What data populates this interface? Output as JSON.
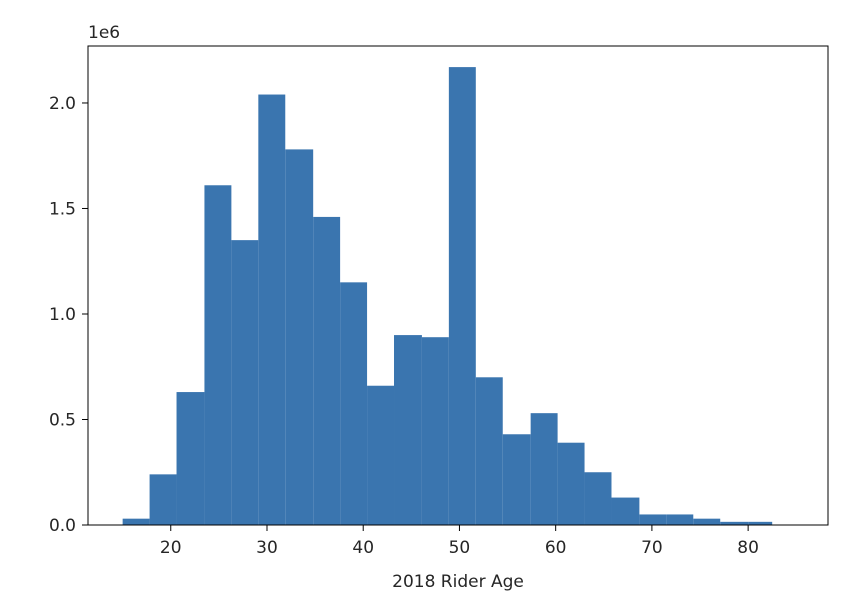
{
  "chart_data": {
    "type": "bar",
    "subtype": "histogram",
    "bar_color": "#3a75af",
    "xlabel": "2018 Rider Age",
    "ylabel": "",
    "offset_text": "1e6",
    "xlim": [
      11.4,
      88.3
    ],
    "ylim": [
      0,
      2.27
    ],
    "x_ticks": [
      20,
      30,
      40,
      50,
      60,
      70,
      80
    ],
    "x_tick_labels": [
      "20",
      "30",
      "40",
      "50",
      "60",
      "70",
      "80"
    ],
    "y_ticks": [
      0,
      0.5,
      1.0,
      1.5,
      2.0
    ],
    "y_tick_labels": [
      "0.0",
      "0.5",
      "1.0",
      "1.5",
      "2.0"
    ],
    "bins": [
      {
        "x0": 15.0,
        "x1": 17.8,
        "value": 0.03
      },
      {
        "x0": 17.8,
        "x1": 20.6,
        "value": 0.24
      },
      {
        "x0": 20.6,
        "x1": 23.5,
        "value": 0.63
      },
      {
        "x0": 23.5,
        "x1": 26.3,
        "value": 1.61
      },
      {
        "x0": 26.3,
        "x1": 29.1,
        "value": 1.35
      },
      {
        "x0": 29.1,
        "x1": 31.9,
        "value": 2.04
      },
      {
        "x0": 31.9,
        "x1": 34.8,
        "value": 1.78
      },
      {
        "x0": 34.8,
        "x1": 37.6,
        "value": 1.46
      },
      {
        "x0": 37.6,
        "x1": 40.4,
        "value": 1.15
      },
      {
        "x0": 40.4,
        "x1": 43.2,
        "value": 0.66
      },
      {
        "x0": 43.2,
        "x1": 46.1,
        "value": 0.9
      },
      {
        "x0": 46.1,
        "x1": 48.9,
        "value": 0.89
      },
      {
        "x0": 48.9,
        "x1": 51.7,
        "value": 2.17
      },
      {
        "x0": 51.7,
        "x1": 54.5,
        "value": 0.7
      },
      {
        "x0": 54.5,
        "x1": 57.4,
        "value": 0.43
      },
      {
        "x0": 57.4,
        "x1": 60.2,
        "value": 0.53
      },
      {
        "x0": 60.2,
        "x1": 63.0,
        "value": 0.39
      },
      {
        "x0": 63.0,
        "x1": 65.8,
        "value": 0.25
      },
      {
        "x0": 65.8,
        "x1": 68.7,
        "value": 0.13
      },
      {
        "x0": 68.7,
        "x1": 71.5,
        "value": 0.05
      },
      {
        "x0": 71.5,
        "x1": 74.3,
        "value": 0.05
      },
      {
        "x0": 74.3,
        "x1": 77.1,
        "value": 0.03
      },
      {
        "x0": 77.1,
        "x1": 80.0,
        "value": 0.015
      },
      {
        "x0": 80.0,
        "x1": 82.5,
        "value": 0.015
      }
    ]
  }
}
